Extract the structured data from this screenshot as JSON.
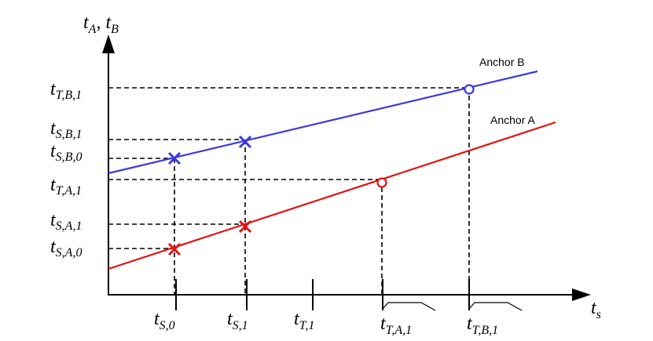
{
  "axes": {
    "y_label": {
      "main": "t",
      "parts": [
        {
          "sub": "A"
        },
        {
          "sep": ", t"
        },
        {
          "sub": "B"
        }
      ]
    },
    "x_label": {
      "main": "t",
      "sub": "s"
    }
  },
  "lines": [
    {
      "id": "anchor-b",
      "label": "Anchor B",
      "color": "#3a3adf"
    },
    {
      "id": "anchor-a",
      "label": "Anchor A",
      "color": "#e31212"
    }
  ],
  "y_ticks": [
    {
      "id": "t-t-b-1",
      "main": "t",
      "sub": "T,B,1"
    },
    {
      "id": "t-s-b-1",
      "main": "t",
      "sub": "S,B,1"
    },
    {
      "id": "t-s-b-0",
      "main": "t",
      "sub": "S,B,0"
    },
    {
      "id": "t-t-a-1",
      "main": "t",
      "sub": "T,A,1"
    },
    {
      "id": "t-s-a-1",
      "main": "t",
      "sub": "S,A,1"
    },
    {
      "id": "t-s-a-0",
      "main": "t",
      "sub": "S,A,0"
    }
  ],
  "x_ticks": [
    {
      "id": "t-s-0",
      "main": "t",
      "sub": "S,0"
    },
    {
      "id": "t-s-1",
      "main": "t",
      "sub": "S,1"
    },
    {
      "id": "t-t-1",
      "main": "t",
      "sub": "T,1"
    },
    {
      "id": "t-t-a-1-x",
      "main": "t",
      "sub": "T,A,1"
    },
    {
      "id": "t-t-b-1-x",
      "main": "t",
      "sub": "T,B,1"
    }
  ],
  "markers": [
    {
      "id": "cross-b-0",
      "shape": "cross",
      "line": "anchor-b"
    },
    {
      "id": "cross-b-1",
      "shape": "cross",
      "line": "anchor-b"
    },
    {
      "id": "cross-a-0",
      "shape": "cross",
      "line": "anchor-a"
    },
    {
      "id": "cross-a-1",
      "shape": "cross",
      "line": "anchor-a"
    },
    {
      "id": "circle-a",
      "shape": "circle",
      "line": "anchor-a"
    },
    {
      "id": "circle-b",
      "shape": "circle",
      "line": "anchor-b"
    }
  ]
}
